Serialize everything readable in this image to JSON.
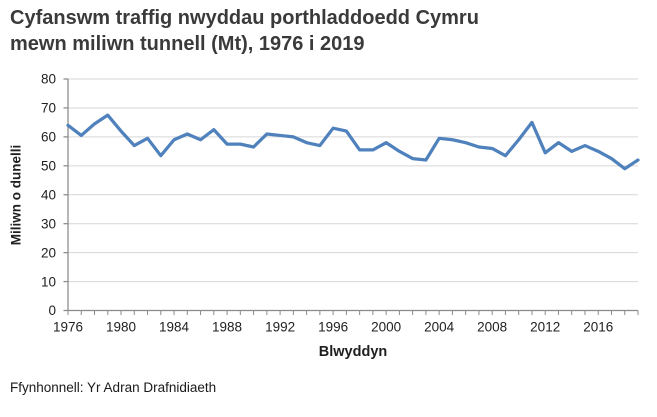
{
  "header": {
    "title_line1": "Cyfanswm traffig nwyddau porthladdoedd Cymru",
    "title_line2": "mewn miliwn tunnell (Mt), 1976 i 2019"
  },
  "footer": {
    "source": "Ffynhonnell: Yr Adran Drafnidiaeth"
  },
  "chart_data": {
    "type": "line",
    "title": "Cyfanswm traffig nwyddau porthladdoedd Cymru mewn miliwn tunnell (Mt), 1976 i 2019",
    "xlabel": "Blwyddyn",
    "ylabel": "Miliwn o dunelli",
    "ylim": [
      0,
      80
    ],
    "yticks": [
      0,
      10,
      20,
      30,
      40,
      50,
      60,
      70,
      80
    ],
    "xticks": [
      1976,
      1980,
      1984,
      1988,
      1992,
      1996,
      2000,
      2004,
      2008,
      2012,
      2016
    ],
    "grid": true,
    "legend": false,
    "x": [
      1976,
      1977,
      1978,
      1979,
      1980,
      1981,
      1982,
      1983,
      1984,
      1985,
      1986,
      1987,
      1988,
      1989,
      1990,
      1991,
      1992,
      1993,
      1994,
      1995,
      1996,
      1997,
      1998,
      1999,
      2000,
      2001,
      2002,
      2003,
      2004,
      2005,
      2006,
      2007,
      2008,
      2009,
      2010,
      2011,
      2012,
      2013,
      2014,
      2015,
      2016,
      2017,
      2018,
      2019
    ],
    "values": [
      64,
      60.5,
      64.5,
      67.5,
      62,
      57,
      59.5,
      53.5,
      59,
      61,
      59,
      62.5,
      57.5,
      57.5,
      56.5,
      61,
      60.5,
      60,
      58,
      57,
      63,
      62,
      55.5,
      55.5,
      58,
      55,
      52.5,
      52,
      59.5,
      59,
      58,
      56.5,
      56,
      53.5,
      59,
      65,
      54.5,
      58,
      55,
      57,
      55,
      52.5,
      49,
      52
    ],
    "colors": {
      "line": "#4F81BD",
      "grid": "#D6D6D6",
      "axis": "#8A8A8A",
      "tick_text": "#1f1f1f",
      "title_text": "#3a3a3a"
    }
  }
}
